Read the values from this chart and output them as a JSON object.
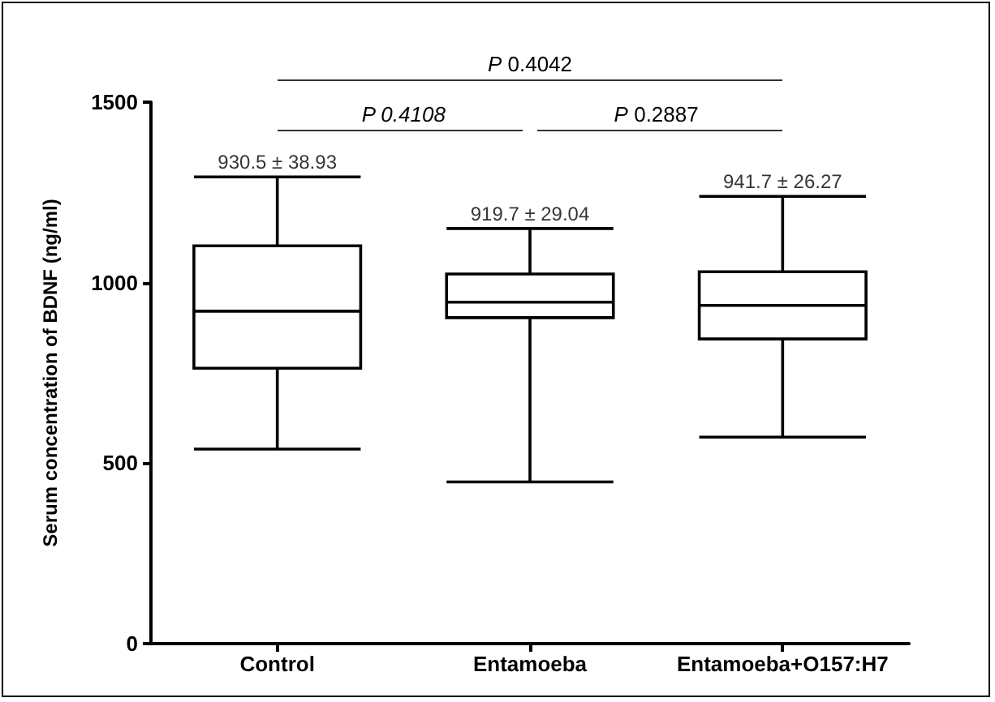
{
  "chart_data": {
    "type": "box",
    "ylabel": "Serum concentration of BDNF (ng/ml)",
    "categories": [
      "Control",
      "Entamoeba",
      "Entamoeba+O157:H7"
    ],
    "boxes": [
      {
        "low": 539,
        "q1": 763,
        "median": 921,
        "q3": 1102,
        "high": 1293
      },
      {
        "low": 448,
        "q1": 903,
        "median": 946,
        "q3": 1024,
        "high": 1150
      },
      {
        "low": 572,
        "q1": 844,
        "median": 937,
        "q3": 1030,
        "high": 1239
      }
    ],
    "color": "#000000",
    "ylim": [
      0,
      1500
    ],
    "yticks": [
      0,
      500,
      1000,
      1500
    ],
    "grid": false,
    "annotations": [
      {
        "text": "930.5 ± 38.93",
        "x": "Control",
        "y": 1293
      },
      {
        "text": "919.7 ± 29.04",
        "x": "Entamoeba",
        "y": 1150
      },
      {
        "text": "941.7 ± 26.27",
        "x": "Entamoeba+O157:H7",
        "y": 1239
      },
      "P 0.4042",
      "P 0.4108",
      "P 0.2887"
    ]
  }
}
